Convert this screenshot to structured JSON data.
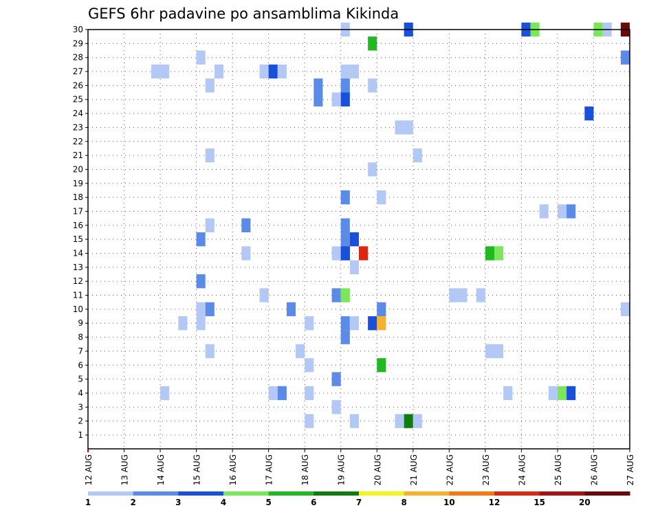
{
  "chart_data": {
    "type": "heatmap",
    "title": "GEFS 6hr padavine po ansamblima Kikinda",
    "xlabel": "",
    "ylabel": "",
    "x_tick_labels": [
      "12 AUG",
      "13 AUG",
      "14 AUG",
      "15 AUG",
      "16 AUG",
      "17 AUG",
      "18 AUG",
      "19 AUG",
      "20 AUG",
      "21 AUG",
      "22 AUG",
      "23 AUG",
      "24 AUG",
      "25 AUG",
      "26 AUG",
      "27 AUG"
    ],
    "x_range": [
      0,
      60
    ],
    "x_step_hours": 6,
    "y_tick_labels": [
      "1",
      "2",
      "3",
      "4",
      "5",
      "6",
      "7",
      "8",
      "9",
      "10",
      "11",
      "12",
      "13",
      "14",
      "15",
      "16",
      "17",
      "18",
      "19",
      "20",
      "21",
      "22",
      "23",
      "24",
      "25",
      "26",
      "27",
      "28",
      "29",
      "30"
    ],
    "y_range": [
      1,
      30
    ],
    "grid": true,
    "colorbar": {
      "labels": [
        "1",
        "2",
        "3",
        "4",
        "5",
        "6",
        "7",
        "8",
        "10",
        "12",
        "15",
        "20"
      ],
      "colors": [
        "#b3c8f5",
        "#5b8be6",
        "#1a4fd9",
        "#7ae65a",
        "#22b822",
        "#117a11",
        "#f5f51e",
        "#f5b232",
        "#f57814",
        "#d92814",
        "#a51414",
        "#6b0a0a"
      ]
    },
    "cells": [
      [
        28,
        30,
        0
      ],
      [
        35,
        30,
        2
      ],
      [
        48,
        30,
        2
      ],
      [
        49,
        30,
        3
      ],
      [
        56,
        30,
        3
      ],
      [
        57,
        30,
        0
      ],
      [
        59,
        30,
        11
      ],
      [
        31,
        29,
        4
      ],
      [
        59,
        28,
        1
      ],
      [
        12,
        28,
        0
      ],
      [
        7,
        27,
        0
      ],
      [
        8,
        27,
        0
      ],
      [
        14,
        27,
        0
      ],
      [
        19,
        27,
        0
      ],
      [
        20,
        27,
        2
      ],
      [
        21,
        27,
        0
      ],
      [
        28,
        27,
        0
      ],
      [
        29,
        27,
        0
      ],
      [
        13,
        26,
        0
      ],
      [
        25,
        26,
        1
      ],
      [
        28,
        26,
        1
      ],
      [
        31,
        26,
        0
      ],
      [
        25,
        25,
        1
      ],
      [
        27,
        25,
        0
      ],
      [
        28,
        25,
        2
      ],
      [
        55,
        24,
        2
      ],
      [
        34,
        23,
        0
      ],
      [
        35,
        23,
        0
      ],
      [
        13,
        21,
        0
      ],
      [
        36,
        21,
        0
      ],
      [
        31,
        20,
        0
      ],
      [
        28,
        18,
        1
      ],
      [
        32,
        18,
        0
      ],
      [
        50,
        17,
        0
      ],
      [
        52,
        17,
        0
      ],
      [
        53,
        17,
        1
      ],
      [
        17,
        16,
        1
      ],
      [
        13,
        16,
        0
      ],
      [
        28,
        16,
        1
      ],
      [
        28,
        15,
        1
      ],
      [
        12,
        15,
        1
      ],
      [
        29,
        15,
        2
      ],
      [
        28,
        14,
        2
      ],
      [
        17,
        14,
        0
      ],
      [
        27,
        14,
        0
      ],
      [
        28,
        14,
        2
      ],
      [
        30,
        14,
        9
      ],
      [
        44,
        14,
        4
      ],
      [
        45,
        14,
        3
      ],
      [
        29,
        13,
        0
      ],
      [
        12,
        12,
        1
      ],
      [
        19,
        11,
        0
      ],
      [
        27,
        11,
        1
      ],
      [
        28,
        11,
        3
      ],
      [
        40,
        11,
        0
      ],
      [
        41,
        11,
        0
      ],
      [
        43,
        11,
        0
      ],
      [
        12,
        10,
        0
      ],
      [
        13,
        10,
        1
      ],
      [
        22,
        10,
        1
      ],
      [
        32,
        10,
        1
      ],
      [
        59,
        10,
        0
      ],
      [
        10,
        9,
        0
      ],
      [
        12,
        9,
        0
      ],
      [
        24,
        9,
        0
      ],
      [
        28,
        9,
        1
      ],
      [
        29,
        9,
        0
      ],
      [
        31,
        9,
        2
      ],
      [
        32,
        9,
        7
      ],
      [
        28,
        8,
        1
      ],
      [
        13,
        7,
        0
      ],
      [
        23,
        7,
        0
      ],
      [
        44,
        7,
        0
      ],
      [
        45,
        7,
        0
      ],
      [
        24,
        6,
        0
      ],
      [
        32,
        6,
        4
      ],
      [
        27,
        5,
        1
      ],
      [
        8,
        4,
        0
      ],
      [
        20,
        4,
        0
      ],
      [
        21,
        4,
        1
      ],
      [
        24,
        4,
        0
      ],
      [
        46,
        4,
        0
      ],
      [
        51,
        4,
        0
      ],
      [
        52,
        4,
        3
      ],
      [
        53,
        4,
        2
      ],
      [
        27,
        3,
        0
      ],
      [
        24,
        2,
        0
      ],
      [
        29,
        2,
        0
      ],
      [
        34,
        2,
        0
      ],
      [
        35,
        2,
        5
      ],
      [
        36,
        2,
        0
      ]
    ]
  }
}
